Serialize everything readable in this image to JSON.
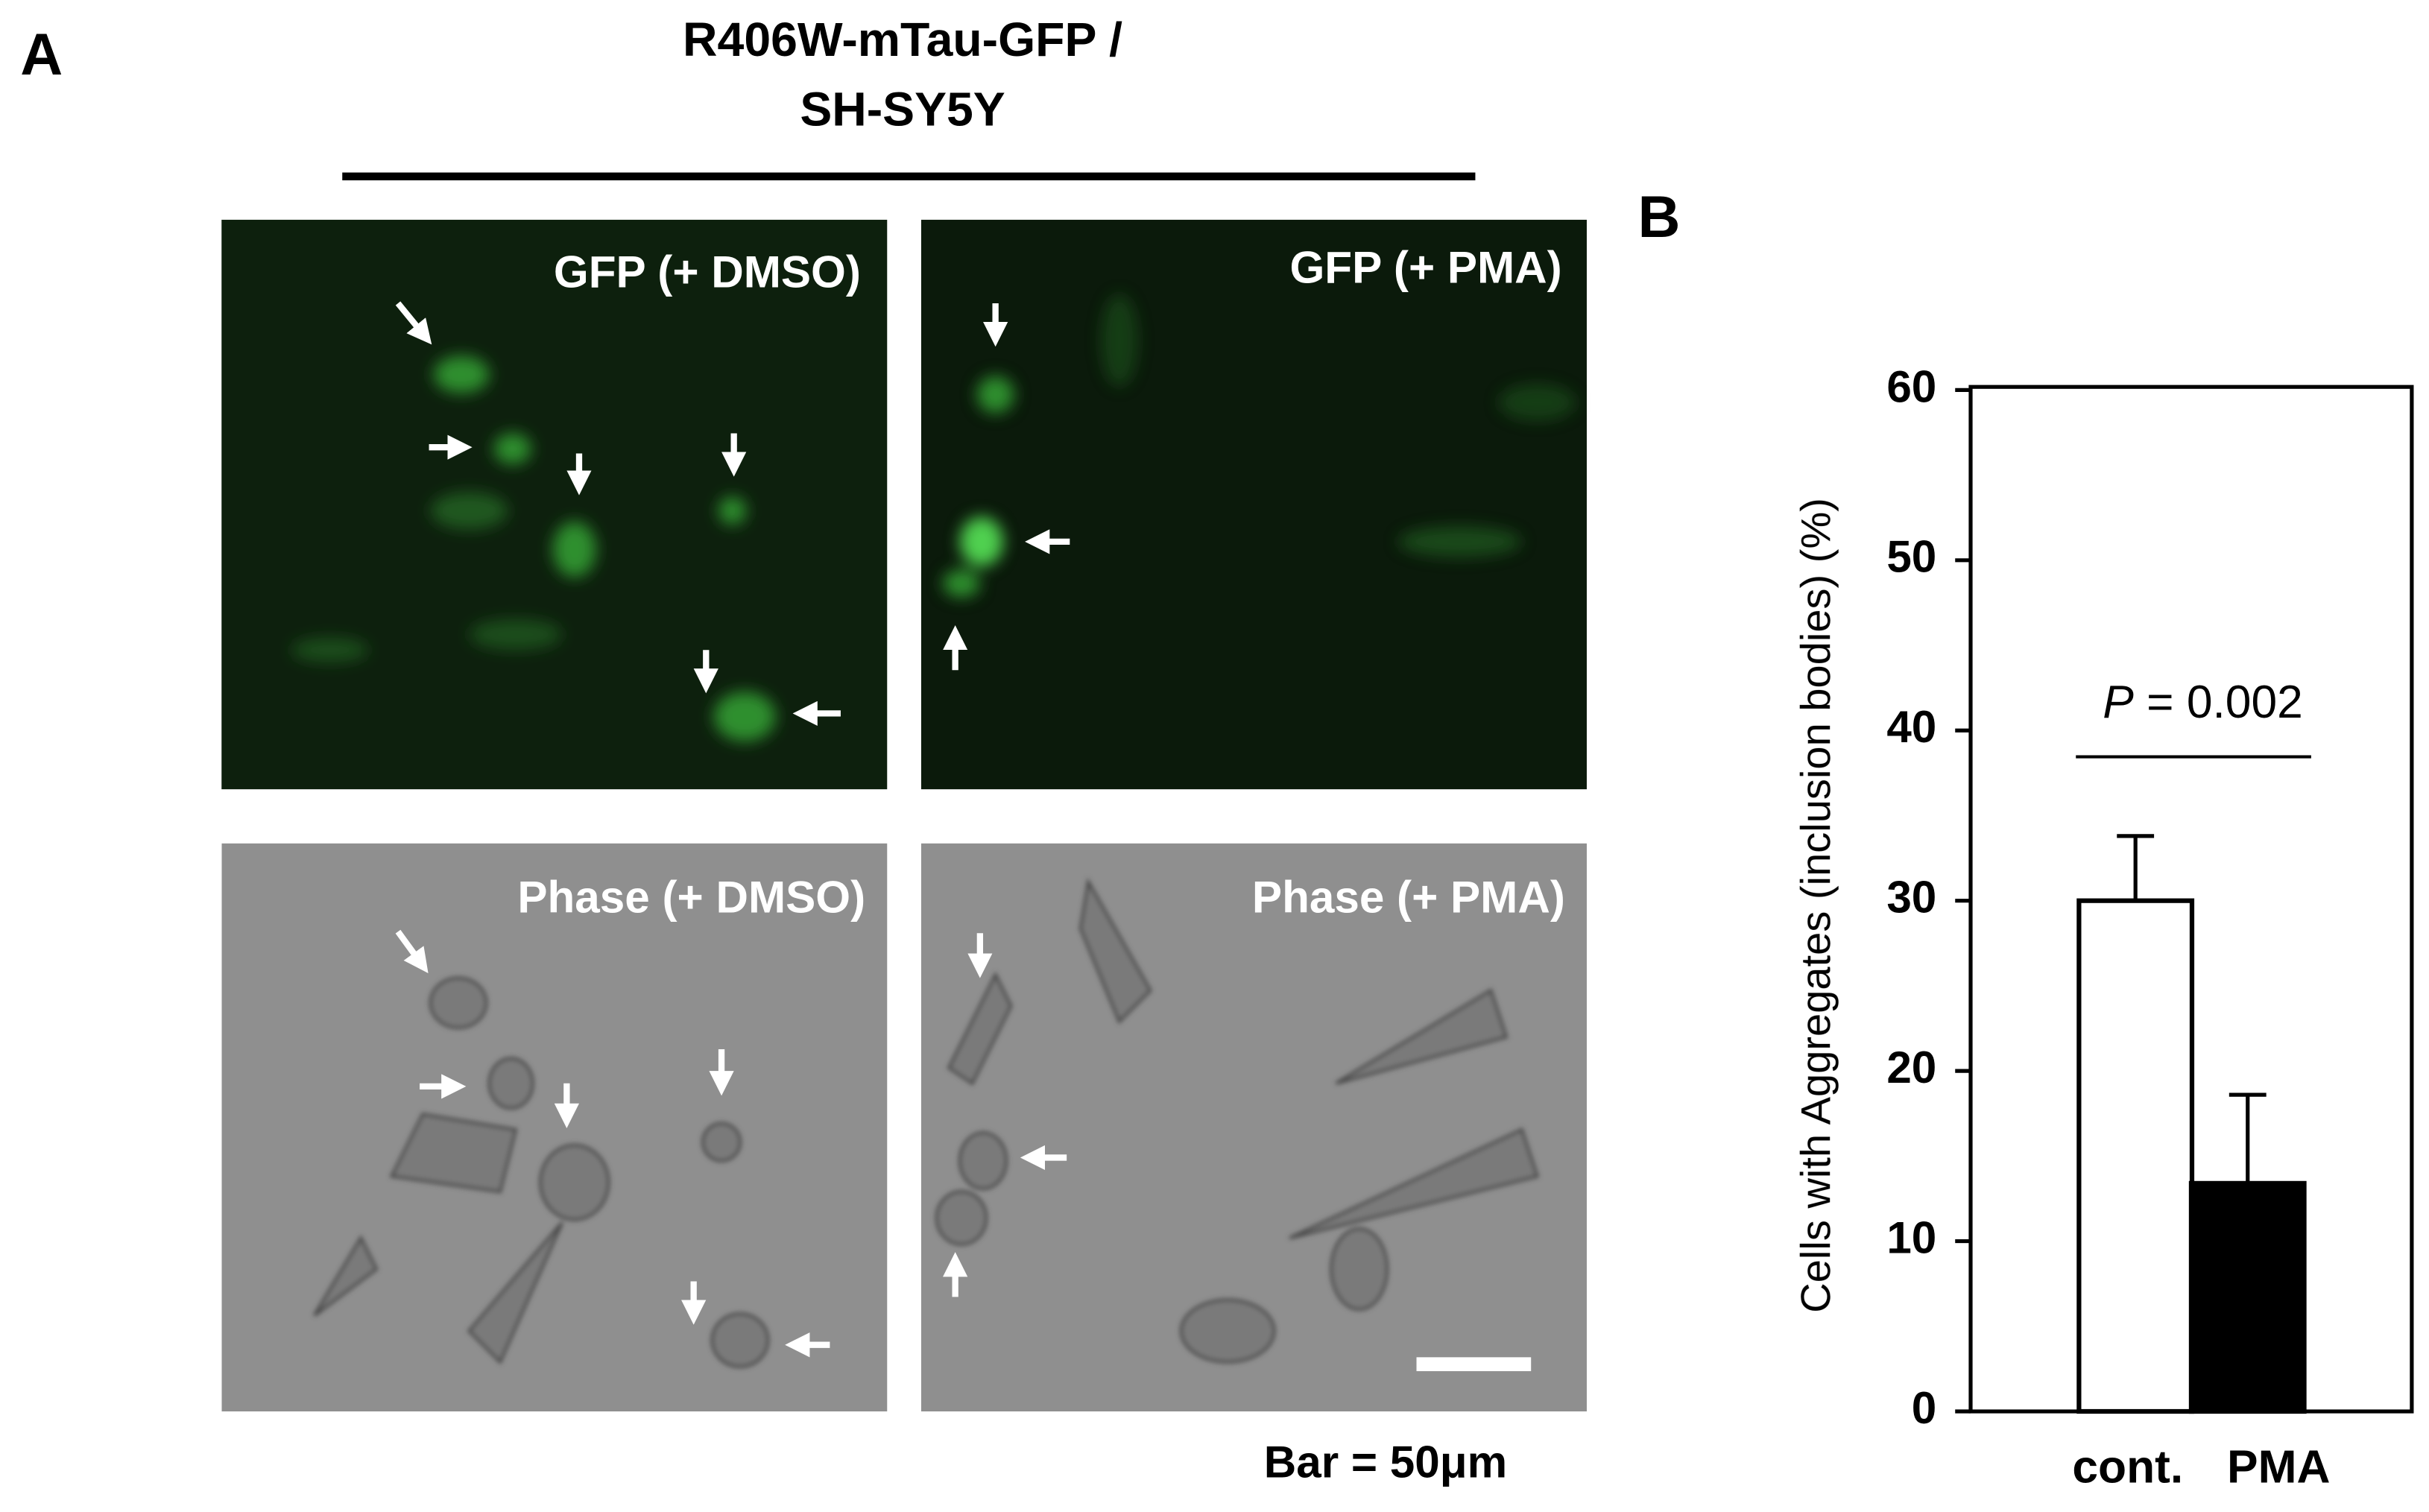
{
  "panel_a": {
    "label": "A",
    "title_lines": [
      "R406W-mTau-GFP /",
      "SH-SY5Y"
    ],
    "panels": [
      "GFP (+ DMSO)",
      "GFP (+ PMA)",
      "Phase (+ DMSO)",
      "Phase (+ PMA)"
    ],
    "scale_bar": "Bar = 50μm"
  },
  "chart_data": {
    "type": "bar",
    "label": "B",
    "y_label": "Cells with Aggregates (inclusion bodies) (%)",
    "categories": [
      "cont.",
      "PMA"
    ],
    "values": [
      30,
      13.4
    ],
    "errors": [
      3.8,
      5.2
    ],
    "colors": [
      "#ffffff",
      "#000000"
    ],
    "ylim": [
      0,
      60
    ],
    "yticks": [
      0,
      10,
      20,
      30,
      40,
      50,
      60
    ],
    "annotation": {
      "variable": "P",
      "text": "= 0.002"
    }
  }
}
